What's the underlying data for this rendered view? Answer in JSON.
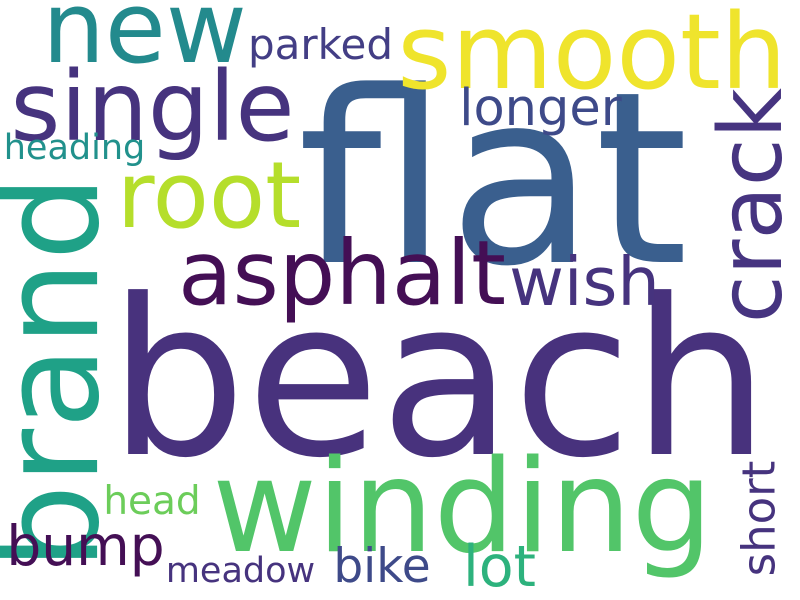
{
  "words": [
    {
      "key": "beach",
      "text": "beach",
      "color": "#48327d",
      "orientation": "horizontal"
    },
    {
      "key": "flat",
      "text": "flat",
      "color": "#3a5f8e",
      "orientation": "horizontal"
    },
    {
      "key": "smooth",
      "text": "smooth",
      "color": "#efe42c",
      "orientation": "horizontal"
    },
    {
      "key": "new",
      "text": "new",
      "color": "#238a8d",
      "orientation": "horizontal"
    },
    {
      "key": "winding",
      "text": "winding",
      "color": "#52c569",
      "orientation": "horizontal"
    },
    {
      "key": "brand",
      "text": "brand",
      "color": "#1fa187",
      "orientation": "vertical"
    },
    {
      "key": "single",
      "text": "single",
      "color": "#46337e",
      "orientation": "horizontal"
    },
    {
      "key": "asphalt",
      "text": "asphalt",
      "color": "#440f55",
      "orientation": "horizontal"
    },
    {
      "key": "crack",
      "text": "crack",
      "color": "#463480",
      "orientation": "vertical"
    },
    {
      "key": "root",
      "text": "root",
      "color": "#b5de2b",
      "orientation": "horizontal"
    },
    {
      "key": "wish",
      "text": "wish",
      "color": "#46337e",
      "orientation": "horizontal"
    },
    {
      "key": "bump",
      "text": "bump",
      "color": "#440f55",
      "orientation": "horizontal"
    },
    {
      "key": "longer",
      "text": "longer",
      "color": "#3e4a89",
      "orientation": "horizontal"
    },
    {
      "key": "parked",
      "text": "parked",
      "color": "#433e85",
      "orientation": "horizontal"
    },
    {
      "key": "head",
      "text": "head",
      "color": "#6ccd5a",
      "orientation": "horizontal"
    },
    {
      "key": "heading",
      "text": "heading",
      "color": "#21918c",
      "orientation": "horizontal"
    },
    {
      "key": "meadow",
      "text": "meadow",
      "color": "#46337e",
      "orientation": "horizontal"
    },
    {
      "key": "bike",
      "text": "bike",
      "color": "#3e4a89",
      "orientation": "horizontal"
    },
    {
      "key": "lot",
      "text": "lot",
      "color": "#2db27d",
      "orientation": "horizontal"
    },
    {
      "key": "short",
      "text": "short",
      "color": "#46337e",
      "orientation": "vertical"
    }
  ]
}
